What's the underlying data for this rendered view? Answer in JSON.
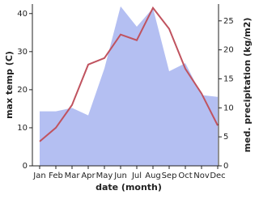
{
  "chart_data": {
    "type": "line",
    "xlabel": "date (month)",
    "ylabel": "max temp (C)",
    "y2label": "med. precipitation (kg/m2)",
    "categories": [
      "Jan",
      "Feb",
      "Mar",
      "Apr",
      "May",
      "Jun",
      "Jul",
      "Aug",
      "Sep",
      "Oct",
      "Nov",
      "Dec"
    ],
    "ylim": [
      0,
      42.5
    ],
    "yticks": [
      0,
      10,
      20,
      30,
      40
    ],
    "y2lim": [
      0,
      27.9
    ],
    "y2ticks": [
      0,
      5,
      10,
      15,
      20,
      25
    ],
    "series": [
      {
        "name": "med. precipitation",
        "type": "area",
        "axis": "y2",
        "color": "#b4bff2",
        "values": [
          9.4,
          9.4,
          10,
          8.7,
          16.8,
          27.5,
          24,
          27.2,
          16.3,
          17.7,
          12.2,
          11.9
        ]
      },
      {
        "name": "max temp",
        "type": "line",
        "axis": "y",
        "color": "#c0535f",
        "values": [
          6.4,
          10,
          16,
          26.6,
          28.3,
          34.5,
          33,
          41.5,
          36,
          25.5,
          19,
          10.6
        ]
      }
    ]
  }
}
